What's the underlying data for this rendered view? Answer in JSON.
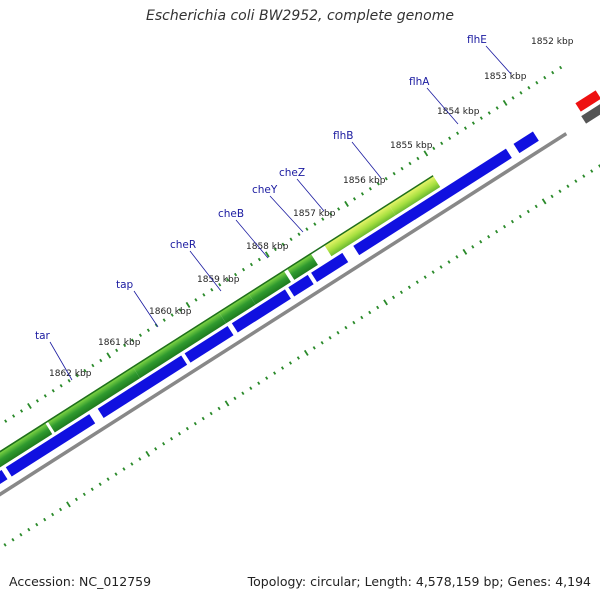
{
  "title": "Escherichia coli BW2952, complete genome",
  "footer": {
    "accession": "Accession: NC_012759",
    "genome_info": "Topology: circular; Length: 4,578,159 bp; Genes: 4,194"
  },
  "colors": {
    "cds": "#1010e0",
    "gene_dark": "#2a8a2a",
    "gene_light": "#8fe048",
    "highlight": "#e8f060",
    "other_feature": "#ee1111",
    "backbone": "#888888",
    "ticks": "#2a8a2a"
  },
  "tick_labels": [
    {
      "text": "1852 kbp"
    },
    {
      "text": "1853 kbp"
    },
    {
      "text": "1854 kbp"
    },
    {
      "text": "1855 kbp"
    },
    {
      "text": "1856 kbp"
    },
    {
      "text": "1857 kbp"
    },
    {
      "text": "1858 kbp"
    },
    {
      "text": "1859 kbp"
    },
    {
      "text": "1860 kbp"
    },
    {
      "text": "1861 kbp"
    },
    {
      "text": "1862 kbp"
    }
  ],
  "gene_labels": [
    {
      "text": "flhE"
    },
    {
      "text": "flhA"
    },
    {
      "text": "flhB"
    },
    {
      "text": "cheZ"
    },
    {
      "text": "cheY"
    },
    {
      "text": "cheB"
    },
    {
      "text": "cheR"
    },
    {
      "text": "tap"
    },
    {
      "text": "tar"
    }
  ]
}
